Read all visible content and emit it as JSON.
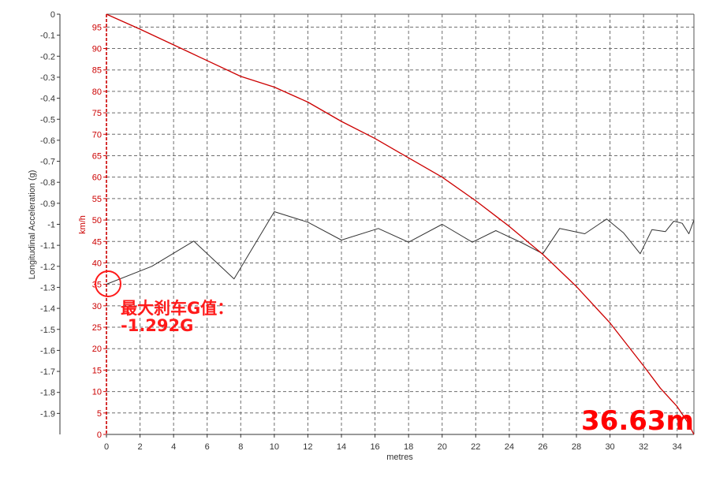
{
  "chart_data": {
    "type": "line",
    "xlabel": "metres",
    "ylabel_left": "Longitudinal Acceleration (g)",
    "ylabel_right": "km/h",
    "xlim": [
      0,
      35
    ],
    "ylim_left": [
      -2.0,
      0
    ],
    "ylim_speed": [
      0,
      98
    ],
    "grid": true,
    "x_ticks": [
      "0",
      "2",
      "4",
      "6",
      "8",
      "10",
      "12",
      "14",
      "16",
      "18",
      "20",
      "22",
      "24",
      "26",
      "28",
      "30",
      "32",
      "34"
    ],
    "y_left_ticks": [
      "0",
      "-0.1",
      "-0.2",
      "-0.3",
      "-0.4",
      "-0.5",
      "-0.6",
      "-0.7",
      "-0.8",
      "-0.9",
      "-1",
      "-1.1",
      "-1.2",
      "-1.3",
      "-1.4",
      "-1.5",
      "-1.6",
      "-1.7",
      "-1.8",
      "-1.9"
    ],
    "y_speed_ticks": [
      "95",
      "90",
      "85",
      "80",
      "75",
      "70",
      "65",
      "60",
      "55",
      "50",
      "45",
      "40",
      "35",
      "30",
      "25",
      "20",
      "15",
      "10",
      "5",
      "0"
    ],
    "series": [
      {
        "axis": "left",
        "color": "#333333",
        "x": [
          0,
          2.7,
          5.2,
          7.6,
          10,
          12,
          14,
          16.2,
          18,
          20,
          21.8,
          23.2,
          24.8,
          26,
          27,
          28.5,
          29.8,
          30.8,
          31.8,
          32.5,
          33.3,
          33.8,
          34.3,
          34.7,
          35
        ],
        "y": [
          -1.285,
          -1.2,
          -1.08,
          -1.26,
          -0.94,
          -0.99,
          -1.075,
          -1.02,
          -1.085,
          -1.0,
          -1.085,
          -1.03,
          -1.09,
          -1.14,
          -1.02,
          -1.045,
          -0.975,
          -1.04,
          -1.14,
          -1.025,
          -1.035,
          -0.985,
          -0.995,
          -1.045,
          -0.98
        ]
      },
      {
        "axis": "speed",
        "color": "#cc0000",
        "x": [
          0,
          2,
          5,
          8,
          10,
          12,
          14,
          16,
          18,
          20,
          22,
          24,
          26,
          28,
          30,
          32,
          33,
          34,
          34.6,
          35
        ],
        "y": [
          98,
          94.5,
          89,
          83.5,
          81,
          77.5,
          73,
          69,
          64.5,
          60,
          54.5,
          48.5,
          42,
          34.5,
          26,
          16,
          10.8,
          6.5,
          3,
          0
        ]
      }
    ]
  },
  "annotations": {
    "max_brake_label": "最大刹车G值：",
    "max_brake_value": "-1.292G",
    "distance": "36.63m",
    "marker_color": "#ff1a1a"
  }
}
